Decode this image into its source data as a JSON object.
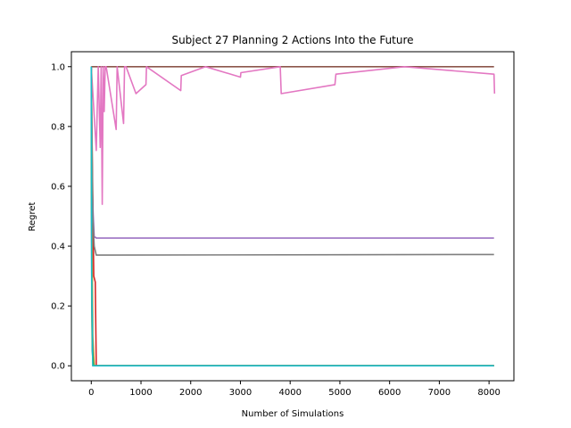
{
  "chart_data": {
    "type": "line",
    "title": "Subject 27 Planning 2 Actions Into the Future",
    "xlabel": "Number of Simulations",
    "ylabel": "Regret",
    "xlim": [
      -400,
      8500
    ],
    "ylim": [
      -0.05,
      1.05
    ],
    "xticks": [
      0,
      1000,
      2000,
      3000,
      4000,
      5000,
      6000,
      7000,
      8000
    ],
    "yticks": [
      0.0,
      0.2,
      0.4,
      0.6,
      0.8,
      1.0
    ],
    "xtick_labels": [
      "0",
      "1000",
      "2000",
      "3000",
      "4000",
      "5000",
      "6000",
      "7000",
      "8000"
    ],
    "ytick_labels": [
      "0.0",
      "0.2",
      "0.4",
      "0.6",
      "0.8",
      "1.0"
    ],
    "grid": false,
    "series": [
      {
        "color": "#1f77b4",
        "x": [
          0,
          5,
          10,
          20,
          40,
          60,
          8100
        ],
        "y": [
          1.0,
          0.5,
          0.2,
          0.05,
          0.0,
          0.0,
          0.0
        ]
      },
      {
        "color": "#ff7f0e",
        "x": [
          0,
          10,
          30,
          60,
          100,
          8100
        ],
        "y": [
          1.0,
          0.6,
          0.1,
          0.0,
          0.0,
          0.0
        ]
      },
      {
        "color": "#2ca02c",
        "x": [
          0,
          10,
          30,
          50,
          8100
        ],
        "y": [
          1.0,
          0.3,
          0.05,
          0.0,
          0.0
        ]
      },
      {
        "color": "#d62728",
        "x": [
          0,
          20,
          50,
          80,
          100,
          120,
          8100
        ],
        "y": [
          1.0,
          0.7,
          0.3,
          0.28,
          0.0,
          0.0,
          0.0
        ]
      },
      {
        "color": "#9467bd",
        "x": [
          0,
          20,
          40,
          60,
          80,
          100,
          8100
        ],
        "y": [
          1.0,
          0.6,
          0.5,
          0.43,
          0.43,
          0.427,
          0.427
        ]
      },
      {
        "color": "#8c564b",
        "x": [
          0,
          40,
          100,
          8100
        ],
        "y": [
          1.0,
          1.0,
          1.0,
          1.0
        ]
      },
      {
        "color": "#e377c2",
        "x": [
          0,
          100,
          140,
          180,
          200,
          220,
          240,
          260,
          280,
          300,
          500,
          520,
          650,
          670,
          700,
          900,
          1100,
          1110,
          1800,
          1810,
          2300,
          3000,
          3010,
          3800,
          3820,
          4900,
          4920,
          6300,
          8100,
          8110
        ],
        "y": [
          1.0,
          0.72,
          1.0,
          0.73,
          1.0,
          0.54,
          1.0,
          0.85,
          1.0,
          1.0,
          0.79,
          1.0,
          0.81,
          1.0,
          1.0,
          0.91,
          0.94,
          1.0,
          0.92,
          0.97,
          1.0,
          0.965,
          0.98,
          1.0,
          0.91,
          0.94,
          0.975,
          1.0,
          0.975,
          0.91
        ]
      },
      {
        "color": "#7f7f7f",
        "x": [
          0,
          30,
          60,
          100,
          8100
        ],
        "y": [
          1.0,
          0.5,
          0.4,
          0.37,
          0.372
        ]
      },
      {
        "color": "#bcbd22",
        "x": [
          0,
          5,
          15,
          30,
          50,
          8100
        ],
        "y": [
          1.0,
          0.6,
          0.15,
          0.0,
          0.0,
          0.0
        ]
      },
      {
        "color": "#17becf",
        "x": [
          0,
          10,
          30,
          8100
        ],
        "y": [
          1.0,
          0.3,
          0.0,
          0.0
        ]
      }
    ]
  }
}
